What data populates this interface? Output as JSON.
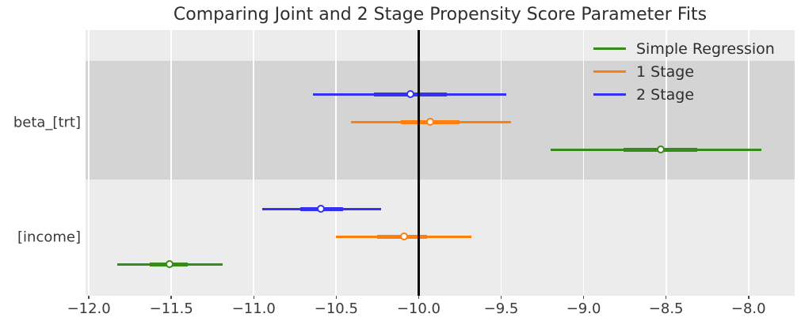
{
  "chart_data": {
    "type": "forest",
    "title": "Comparing Joint and 2 Stage Propensity Score Parameter Fits",
    "xlim": [
      -12.02,
      -7.72
    ],
    "x_ticks": [
      -12.0,
      -11.5,
      -11.0,
      -10.5,
      -10.0,
      -9.5,
      -9.0,
      -8.5,
      -8.0
    ],
    "x_tick_labels": [
      "−12.0",
      "−11.5",
      "−11.0",
      "−10.5",
      "−10.0",
      "−9.5",
      "−9.0",
      "−8.5",
      "−8.0"
    ],
    "reference_line_x": -10.0,
    "grid": "vertical-white",
    "legend_position": "upper right",
    "parameters": [
      {
        "label": "beta_[trt]"
      },
      {
        "label": "[income]"
      }
    ],
    "series": [
      {
        "name": "Simple Regression",
        "color": "#378c19",
        "estimates": [
          {
            "parameter": "beta_[trt]",
            "point": -8.53,
            "ci_50": [
              -8.76,
              -8.31
            ],
            "ci_95": [
              -9.2,
              -7.92
            ]
          },
          {
            "parameter": "[income]",
            "point": -11.51,
            "ci_50": [
              -11.63,
              -11.4
            ],
            "ci_95": [
              -11.83,
              -11.19
            ]
          }
        ]
      },
      {
        "name": "1 Stage",
        "color": "#ff7f0e",
        "estimates": [
          {
            "parameter": "beta_[trt]",
            "point": -9.93,
            "ci_50": [
              -10.11,
              -9.75
            ],
            "ci_95": [
              -10.41,
              -9.44
            ]
          },
          {
            "parameter": "[income]",
            "point": -10.09,
            "ci_50": [
              -10.25,
              -9.95
            ],
            "ci_95": [
              -10.5,
              -9.68
            ]
          }
        ]
      },
      {
        "name": "2 Stage",
        "color": "#3232f0",
        "estimates": [
          {
            "parameter": "beta_[trt]",
            "point": -10.05,
            "ci_50": [
              -10.27,
              -9.83
            ],
            "ci_95": [
              -10.64,
              -9.47
            ]
          },
          {
            "parameter": "[income]",
            "point": -10.59,
            "ci_50": [
              -10.72,
              -10.46
            ],
            "ci_95": [
              -10.95,
              -10.23
            ]
          }
        ]
      }
    ],
    "styles": {
      "plot_background": "#ececec",
      "band": "#d4d4d4",
      "gridline": "#ffffff",
      "reference_line": "#0a0a0a",
      "marker_fill": "#ffffff"
    }
  }
}
